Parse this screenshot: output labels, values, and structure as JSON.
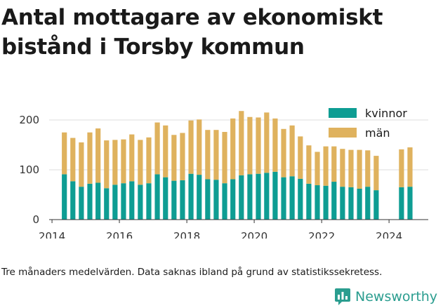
{
  "chart_data": {
    "type": "bar",
    "stacked": true,
    "title": "Antal mottagare av ekonomiskt bistånd i Torsby kommun",
    "xlabel": "",
    "ylabel": "",
    "ylim": [
      0,
      225
    ],
    "yticks": [
      0,
      100,
      200
    ],
    "xticks": [
      "2014",
      "2016",
      "2018",
      "2020",
      "2022",
      "2024"
    ],
    "grid": true,
    "legend_position": "top-right",
    "dates": [
      "2014-05",
      "2014-08",
      "2014-11",
      "2015-02",
      "2015-05",
      "2015-08",
      "2015-11",
      "2016-02",
      "2016-05",
      "2016-08",
      "2016-11",
      "2017-02",
      "2017-05",
      "2017-08",
      "2017-11",
      "2018-02",
      "2018-05",
      "2018-08",
      "2018-11",
      "2019-02",
      "2019-05",
      "2019-08",
      "2019-11",
      "2020-02",
      "2020-05",
      "2020-08",
      "2020-11",
      "2021-02",
      "2021-05",
      "2021-08",
      "2021-11",
      "2022-02",
      "2022-05",
      "2022-08",
      "2022-11",
      "2023-02",
      "2023-05",
      "2023-08",
      "2024-05",
      "2024-08"
    ],
    "series": [
      {
        "name": "kvinnor",
        "color": "#0e9d93",
        "values": [
          91,
          77,
          66,
          72,
          74,
          63,
          70,
          73,
          77,
          70,
          73,
          91,
          85,
          78,
          79,
          92,
          90,
          81,
          80,
          73,
          81,
          89,
          91,
          92,
          94,
          96,
          85,
          87,
          82,
          72,
          69,
          68,
          76,
          66,
          65,
          62,
          66,
          59,
          65,
          66
        ]
      },
      {
        "name": "män",
        "color": "#dfb25e",
        "values": [
          84,
          87,
          89,
          103,
          109,
          96,
          90,
          88,
          94,
          90,
          92,
          104,
          104,
          92,
          95,
          107,
          111,
          99,
          100,
          103,
          122,
          129,
          115,
          113,
          121,
          107,
          97,
          102,
          85,
          77,
          67,
          79,
          71,
          76,
          75,
          78,
          73,
          69,
          76,
          79
        ]
      }
    ]
  },
  "caption": "Tre månaders medelvärden. Data saknas ibland på grund av statistikssekretess.",
  "brand": {
    "name": "Newsworthy",
    "icon": "bar-chart-logo-icon",
    "color": "#2a9d8f"
  }
}
